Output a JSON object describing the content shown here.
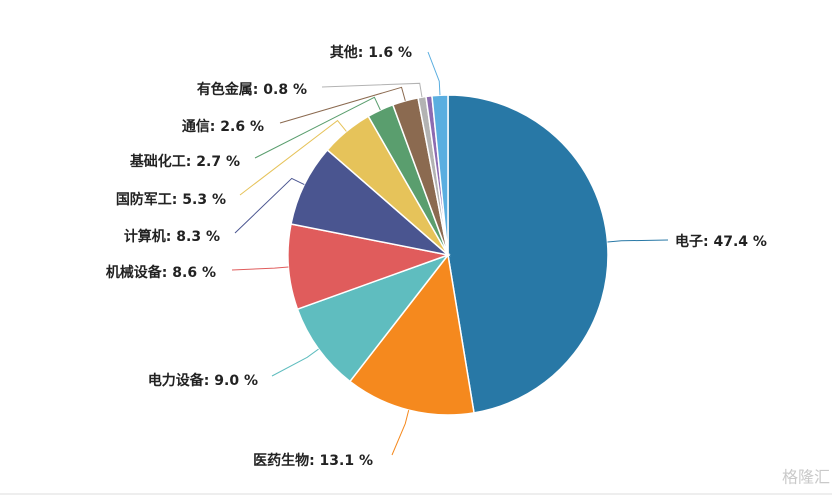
{
  "chart_data": {
    "type": "pie",
    "categories": [
      "电子",
      "医药生物",
      "电力设备",
      "机械设备",
      "计算机",
      "国防军工",
      "基础化工",
      "通信",
      "有色金属",
      null,
      "其他"
    ],
    "values": [
      47.4,
      13.1,
      9.0,
      8.6,
      8.3,
      5.3,
      2.7,
      2.6,
      0.8,
      0.6,
      1.6
    ],
    "labels": [
      "电子: 47.4 %",
      "医药生物: 13.1 %",
      "电力设备: 9.0 %",
      "机械设备: 8.6 %",
      "计算机: 8.3 %",
      "国防军工: 5.3 %",
      "基础化工: 2.7 %",
      "通信: 2.6 %",
      "有色金属: 0.8 %",
      null,
      "其他: 1.6 %"
    ],
    "colors": [
      "#2878a6",
      "#f5891e",
      "#5fbdbf",
      "#e05c5c",
      "#4a5590",
      "#e6c35a",
      "#5a9e6e",
      "#8b6a50",
      "#b3b3b3",
      "#8c6bb1",
      "#5aaee0"
    ]
  },
  "watermark": "格隆汇"
}
